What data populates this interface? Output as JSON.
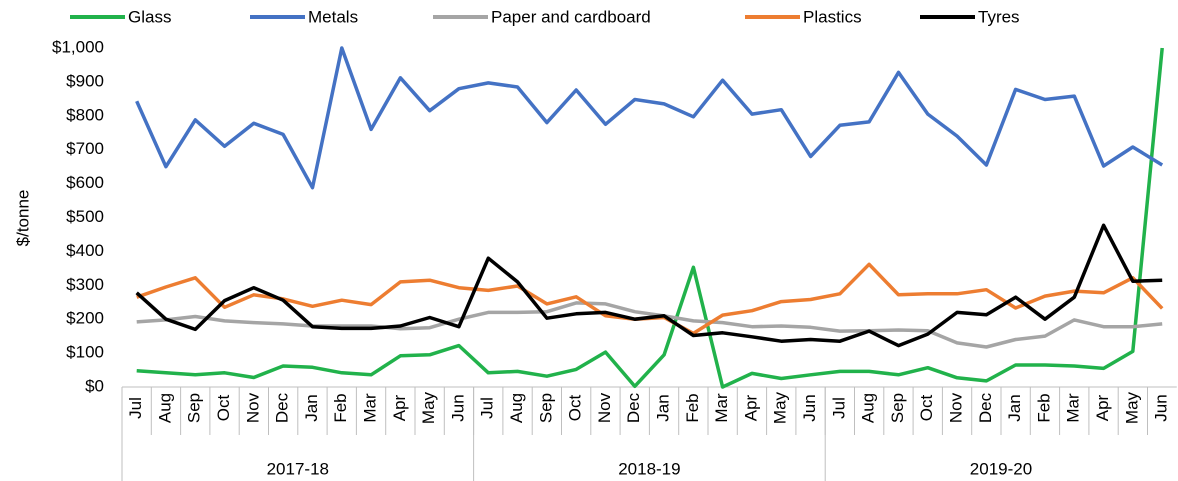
{
  "chart_data": {
    "type": "line",
    "y_label": "$/tonne",
    "categories": [
      "Jul",
      "Aug",
      "Sep",
      "Oct",
      "Nov",
      "Dec",
      "Jan",
      "Feb",
      "Mar",
      "Apr",
      "May",
      "Jun",
      "Jul",
      "Aug",
      "Sep",
      "Oct",
      "Nov",
      "Dec",
      "Jan",
      "Feb",
      "Mar",
      "Apr",
      "May",
      "Jun",
      "Jul",
      "Aug",
      "Sep",
      "Oct",
      "Nov",
      "Dec",
      "Jan",
      "Feb",
      "Mar",
      "Apr",
      "May",
      "Jun"
    ],
    "groups": [
      "2017-18",
      "2018-19",
      "2019-20"
    ],
    "series": [
      {
        "name": "Glass",
        "color": "#21b24b",
        "values": [
          48,
          42,
          36,
          42,
          28,
          62,
          58,
          42,
          36,
          92,
          95,
          122,
          42,
          46,
          32,
          52,
          103,
          2,
          95,
          353,
          0,
          40,
          25,
          36,
          46,
          46,
          36,
          57,
          27,
          18,
          65,
          65,
          62,
          55,
          105,
          1000
        ]
      },
      {
        "name": "Metals",
        "color": "#4472c4",
        "values": [
          843,
          650,
          788,
          710,
          778,
          745,
          588,
          1000,
          760,
          912,
          815,
          880,
          897,
          885,
          780,
          876,
          775,
          848,
          835,
          797,
          905,
          805,
          818,
          680,
          772,
          782,
          928,
          805,
          740,
          655,
          878,
          848,
          858,
          652,
          708,
          655
        ]
      },
      {
        "name": "Paper and cardboard",
        "color": "#a5a5a5",
        "values": [
          192,
          198,
          208,
          195,
          190,
          186,
          180,
          180,
          180,
          172,
          175,
          200,
          220,
          220,
          222,
          248,
          245,
          222,
          210,
          195,
          190,
          178,
          180,
          176,
          165,
          166,
          168,
          166,
          130,
          118,
          140,
          150,
          198,
          178,
          178,
          186
        ]
      },
      {
        "name": "Plastics",
        "color": "#ed7d31",
        "values": [
          265,
          295,
          322,
          235,
          272,
          260,
          238,
          256,
          243,
          310,
          315,
          293,
          285,
          298,
          245,
          266,
          210,
          200,
          205,
          158,
          212,
          225,
          252,
          258,
          275,
          362,
          272,
          275,
          275,
          287,
          233,
          268,
          283,
          278,
          322,
          232
        ]
      },
      {
        "name": "Tyres",
        "color": "#000000",
        "values": [
          278,
          200,
          170,
          255,
          293,
          256,
          178,
          173,
          173,
          180,
          205,
          178,
          380,
          310,
          203,
          216,
          220,
          200,
          210,
          152,
          160,
          148,
          135,
          140,
          135,
          165,
          122,
          156,
          220,
          213,
          265,
          200,
          265,
          477,
          312,
          315
        ]
      }
    ],
    "ylim": [
      0,
      1000
    ],
    "yticks": [
      {
        "value": 0,
        "label": "$0"
      },
      {
        "value": 100,
        "label": "$100"
      },
      {
        "value": 200,
        "label": "$200"
      },
      {
        "value": 300,
        "label": "$300"
      },
      {
        "value": 400,
        "label": "$400"
      },
      {
        "value": 500,
        "label": "$500"
      },
      {
        "value": 600,
        "label": "$600"
      },
      {
        "value": 700,
        "label": "$700"
      },
      {
        "value": 800,
        "label": "$800"
      },
      {
        "value": 900,
        "label": "$900"
      },
      {
        "value": 1000,
        "label": "$1,000"
      }
    ],
    "grid": false,
    "legend": "top"
  }
}
